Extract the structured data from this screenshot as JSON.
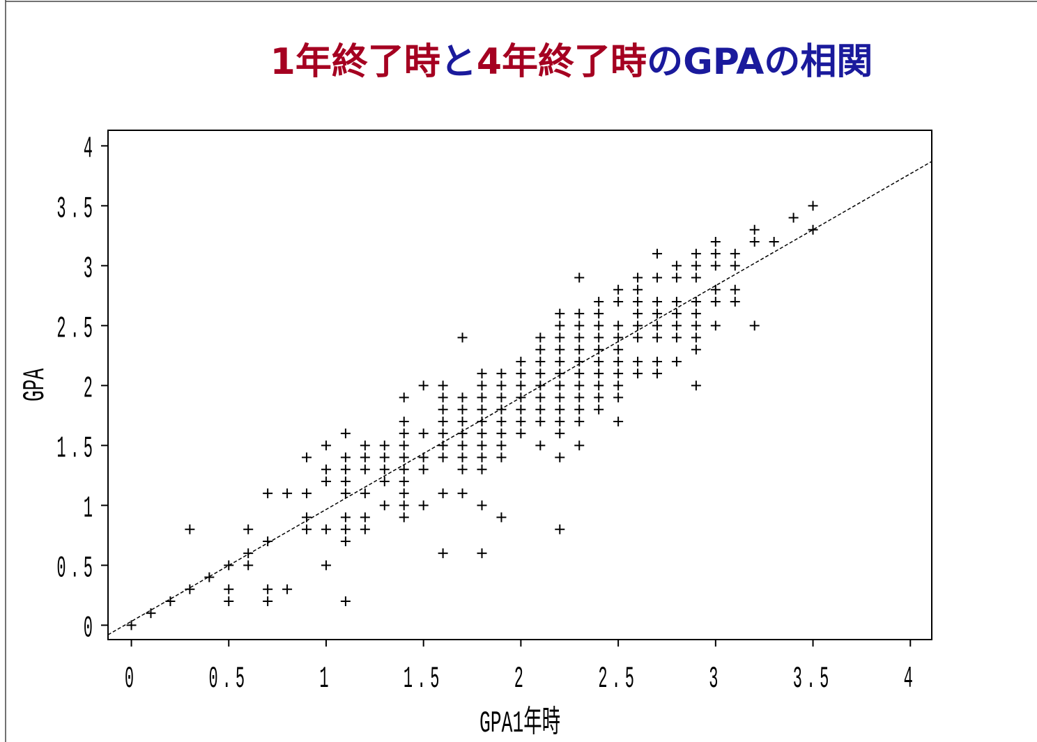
{
  "chart_data": {
    "type": "scatter",
    "title_parts": [
      {
        "text": "1年終了時",
        "color": "#a50021"
      },
      {
        "text": "と",
        "color": "#1a1a9c"
      },
      {
        "text": "4年終了時",
        "color": "#a50021"
      },
      {
        "text": "のGPAの相関",
        "color": "#1a1a9c"
      }
    ],
    "x_label": "GPA1年時",
    "y_label": "GPA",
    "xlim": [
      -0.12,
      4.11
    ],
    "ylim": [
      -0.12,
      4.13
    ],
    "xticks": [
      0,
      0.5,
      1,
      1.5,
      2,
      2.5,
      3,
      3.5,
      4
    ],
    "yticks": [
      0,
      0.5,
      1,
      1.5,
      2,
      2.5,
      3,
      3.5,
      4
    ],
    "color": "#000000",
    "regression_line": {
      "x": [
        -0.12,
        4.11
      ],
      "y": [
        -0.08,
        3.87
      ]
    },
    "x": [
      0,
      0.1,
      0.2,
      0.3,
      0.3,
      0.4,
      0.5,
      0.5,
      0.5,
      0.6,
      0.6,
      0.6,
      0.7,
      0.7,
      0.7,
      0.7,
      0.8,
      0.8,
      0.9,
      0.9,
      0.9,
      0.9,
      1,
      1,
      1,
      1,
      1,
      1.1,
      1.1,
      1.1,
      1.1,
      1.1,
      1.1,
      1.1,
      1.1,
      1.1,
      1.2,
      1.2,
      1.2,
      1.2,
      1.2,
      1.2,
      1.3,
      1.3,
      1.3,
      1.3,
      1.3,
      1.4,
      1.4,
      1.4,
      1.4,
      1.4,
      1.4,
      1.4,
      1.4,
      1.4,
      1.4,
      1.5,
      1.5,
      1.5,
      1.5,
      1.5,
      1.6,
      1.6,
      1.6,
      1.6,
      1.6,
      1.6,
      1.6,
      1.6,
      1.6,
      1.7,
      1.7,
      1.7,
      1.7,
      1.7,
      1.7,
      1.7,
      1.7,
      1.7,
      1.8,
      1.8,
      1.8,
      1.8,
      1.8,
      1.8,
      1.8,
      1.8,
      1.8,
      1.8,
      1.8,
      1.9,
      1.9,
      1.9,
      1.9,
      1.9,
      1.9,
      1.9,
      1.9,
      1.9,
      2,
      2,
      2,
      2,
      2,
      2,
      2,
      2.1,
      2.1,
      2.1,
      2.1,
      2.1,
      2.1,
      2.1,
      2.1,
      2.1,
      2.2,
      2.2,
      2.2,
      2.2,
      2.2,
      2.2,
      2.2,
      2.2,
      2.2,
      2.2,
      2.2,
      2.2,
      2.2,
      2.3,
      2.3,
      2.3,
      2.3,
      2.3,
      2.3,
      2.3,
      2.3,
      2.3,
      2.3,
      2.3,
      2.3,
      2.4,
      2.4,
      2.4,
      2.4,
      2.4,
      2.4,
      2.4,
      2.4,
      2.4,
      2.4,
      2.5,
      2.5,
      2.5,
      2.5,
      2.5,
      2.5,
      2.5,
      2.5,
      2.5,
      2.5,
      2.6,
      2.6,
      2.6,
      2.6,
      2.6,
      2.6,
      2.6,
      2.6,
      2.7,
      2.7,
      2.7,
      2.7,
      2.7,
      2.7,
      2.7,
      2.7,
      2.8,
      2.8,
      2.8,
      2.8,
      2.8,
      2.8,
      2.8,
      2.9,
      2.9,
      2.9,
      2.9,
      2.9,
      2.9,
      2.9,
      2.9,
      2.9,
      3,
      3,
      3,
      3,
      3,
      3,
      3.1,
      3.1,
      3.1,
      3.1,
      3.2,
      3.2,
      3.2,
      3.3,
      3.4,
      3.5,
      3.5
    ],
    "values": [
      0,
      0.1,
      0.2,
      0.3,
      0.8,
      0.4,
      0.5,
      0.3,
      0.2,
      0.8,
      0.6,
      0.5,
      1.1,
      0.7,
      0.3,
      0.2,
      1.1,
      0.3,
      1.4,
      1.1,
      0.9,
      0.8,
      1.5,
      1.3,
      1.2,
      0.8,
      0.5,
      1.6,
      1.4,
      1.3,
      1.2,
      1.1,
      0.9,
      0.8,
      0.7,
      0.2,
      1.5,
      1.4,
      1.3,
      1.1,
      0.9,
      0.8,
      1.5,
      1.4,
      1.3,
      1.2,
      1,
      1.9,
      1.7,
      1.6,
      1.5,
      1.4,
      1.3,
      1.2,
      1.1,
      1,
      0.9,
      2,
      1.6,
      1.4,
      1.3,
      1,
      2,
      1.9,
      1.8,
      1.7,
      1.6,
      1.5,
      1.4,
      1.1,
      0.6,
      2.4,
      1.9,
      1.8,
      1.7,
      1.6,
      1.5,
      1.4,
      1.3,
      1.1,
      2.1,
      2,
      1.9,
      1.8,
      1.7,
      1.6,
      1.5,
      1.4,
      1.3,
      1,
      0.6,
      2.1,
      2,
      1.9,
      1.8,
      1.7,
      1.6,
      1.5,
      1.4,
      0.9,
      2.2,
      2.1,
      2,
      1.9,
      1.8,
      1.7,
      1.6,
      2.4,
      2.3,
      2.2,
      2.1,
      2,
      1.9,
      1.8,
      1.7,
      1.5,
      2.6,
      2.5,
      2.4,
      2.3,
      2.2,
      2.1,
      2,
      1.9,
      1.8,
      1.7,
      1.6,
      1.4,
      0.8,
      2.9,
      2.6,
      2.5,
      2.4,
      2.3,
      2.2,
      2.1,
      2,
      1.9,
      1.8,
      1.7,
      1.5,
      2.7,
      2.6,
      2.5,
      2.4,
      2.3,
      2.2,
      2.1,
      2,
      1.9,
      1.8,
      2.8,
      2.7,
      2.5,
      2.4,
      2.3,
      2.2,
      2.1,
      2,
      1.9,
      1.7,
      2.9,
      2.8,
      2.7,
      2.6,
      2.5,
      2.4,
      2.2,
      2.1,
      3.1,
      2.9,
      2.7,
      2.6,
      2.5,
      2.4,
      2.2,
      2.1,
      3,
      2.9,
      2.7,
      2.6,
      2.5,
      2.4,
      2.2,
      3.1,
      3,
      2.9,
      2.7,
      2.6,
      2.5,
      2.4,
      2.3,
      2,
      3.2,
      3.1,
      3,
      2.8,
      2.7,
      2.5,
      3.1,
      3,
      2.8,
      2.7,
      3.3,
      3.2,
      2.5,
      3.2,
      3.4,
      3.5,
      3.3
    ]
  }
}
